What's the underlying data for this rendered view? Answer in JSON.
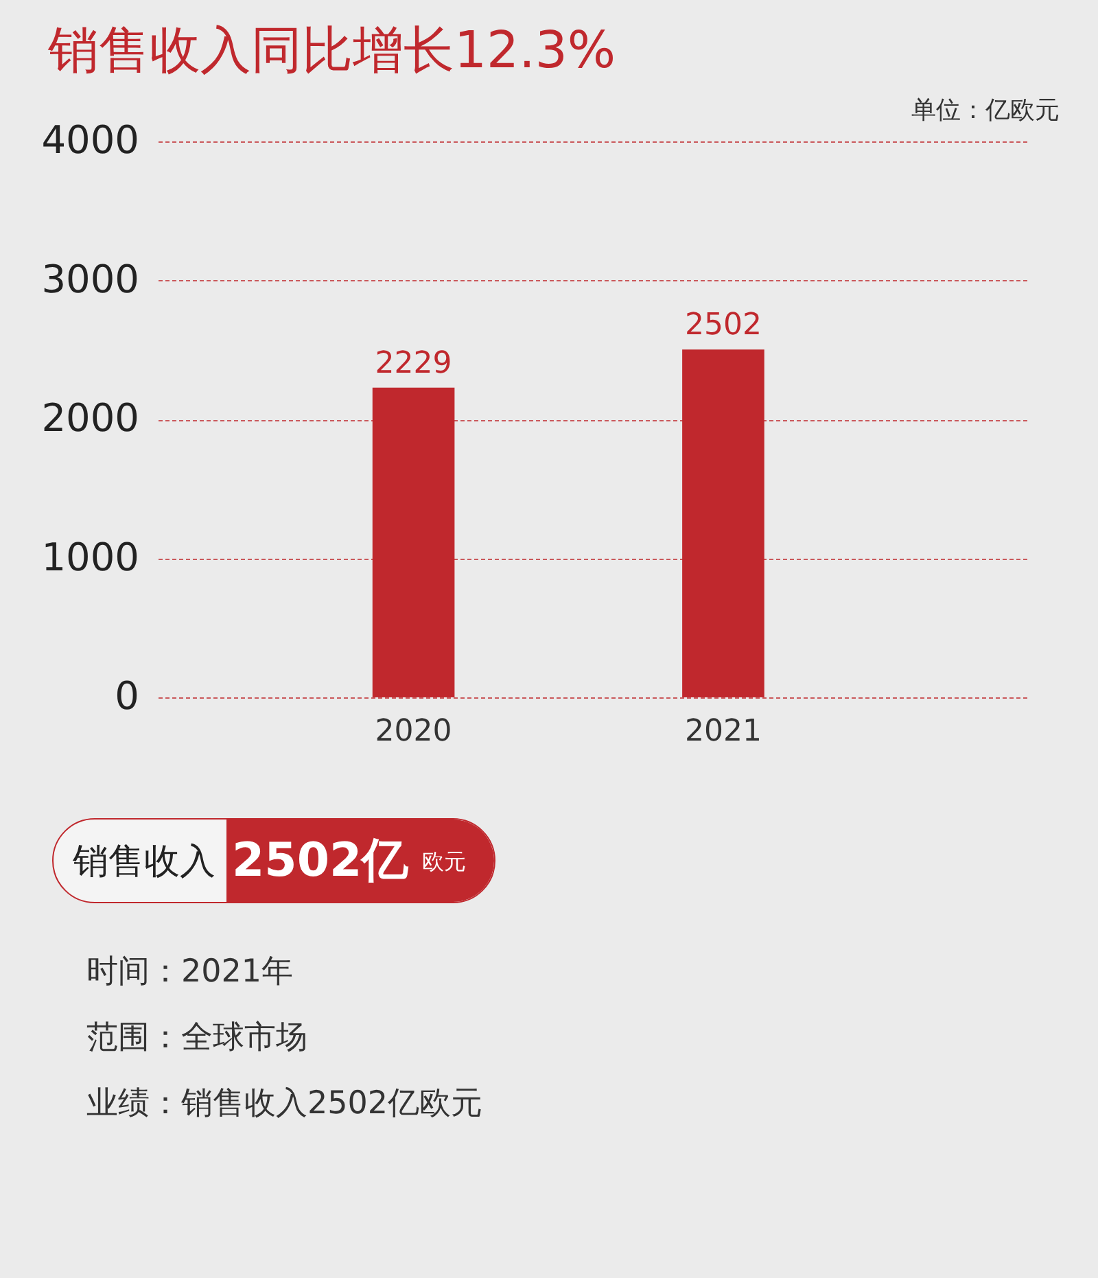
{
  "chart_data": {
    "type": "bar",
    "title": "销售收入同比增长12.3%",
    "categories": [
      "2020",
      "2021"
    ],
    "values": [
      2229,
      2502
    ],
    "color": "#c0282d",
    "ylim": [
      0,
      4000
    ],
    "yticks": [
      0,
      1000,
      2000,
      3000,
      4000
    ],
    "grid": "y",
    "data_labels": true,
    "annotations": [
      "单位：亿欧元",
      "销售收入",
      "2502亿",
      "欧元",
      "时间：2021年",
      "范围：全球市场",
      "业绩：销售收入2502亿欧元"
    ]
  }
}
